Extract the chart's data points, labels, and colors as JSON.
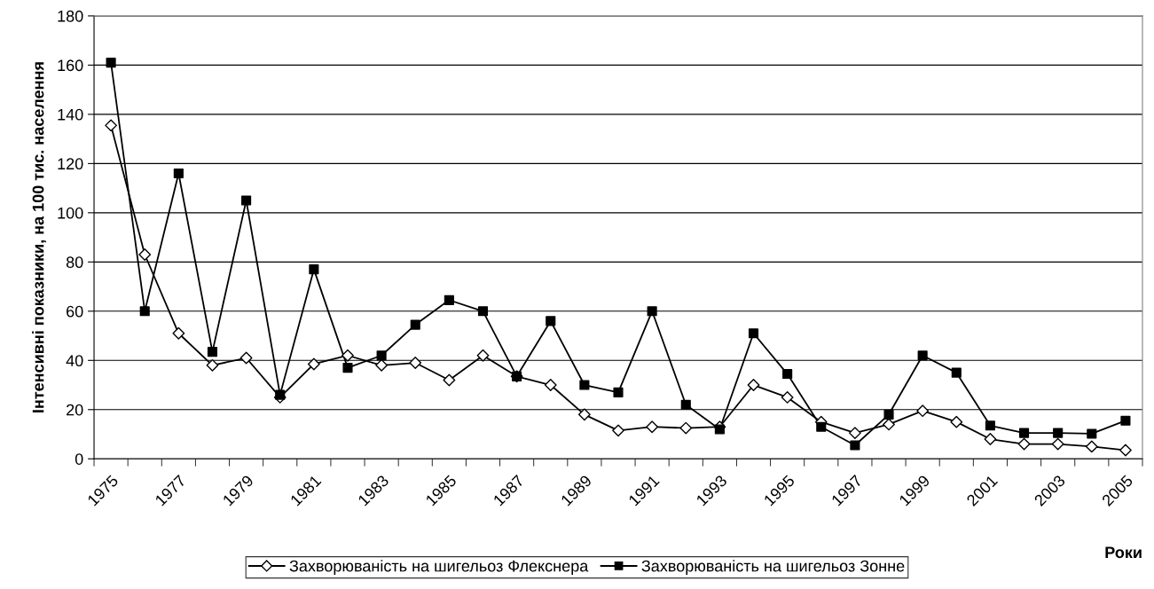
{
  "chart_data": {
    "type": "line",
    "xlabel": "Роки",
    "ylabel": "Інтенсивні показники, на 100 тис. населення",
    "categories": [
      "1975",
      null,
      "1977",
      null,
      "1979",
      null,
      "1981",
      null,
      "1983",
      null,
      "1985",
      null,
      "1987",
      null,
      "1989",
      null,
      "1991",
      null,
      "1993",
      null,
      "1995",
      null,
      "1997",
      null,
      "1999",
      null,
      "2001",
      null,
      "2003",
      null,
      "2005"
    ],
    "series": [
      {
        "name": "Захворюваність на шигельоз Флекснера",
        "color": "#000000",
        "marker": "diamond",
        "values": [
          135.5,
          83,
          51,
          38,
          41,
          25,
          38.5,
          42,
          38,
          39,
          32,
          42,
          33.5,
          30,
          18,
          11.5,
          13,
          12.5,
          13,
          30,
          25,
          15,
          10.5,
          14,
          19.5,
          15,
          8,
          6,
          6,
          5,
          3.5
        ]
      },
      {
        "name": "Захворюваність на шигельоз Зонне",
        "color": "#000000",
        "marker": "square",
        "values": [
          161,
          60,
          116,
          43.5,
          105,
          26,
          77,
          37,
          42,
          54.5,
          64.5,
          60,
          33.5,
          56,
          30,
          27,
          60,
          22,
          12,
          51,
          34.5,
          13,
          5.5,
          18,
          42,
          35,
          13.5,
          10.5,
          10.5,
          10.2,
          15.5
        ]
      }
    ],
    "ylim": [
      0,
      180
    ],
    "yticks": [
      0,
      20,
      40,
      60,
      80,
      100,
      120,
      140,
      160,
      180
    ],
    "grid": "y",
    "legend": "bottom",
    "line_style": "solid"
  }
}
